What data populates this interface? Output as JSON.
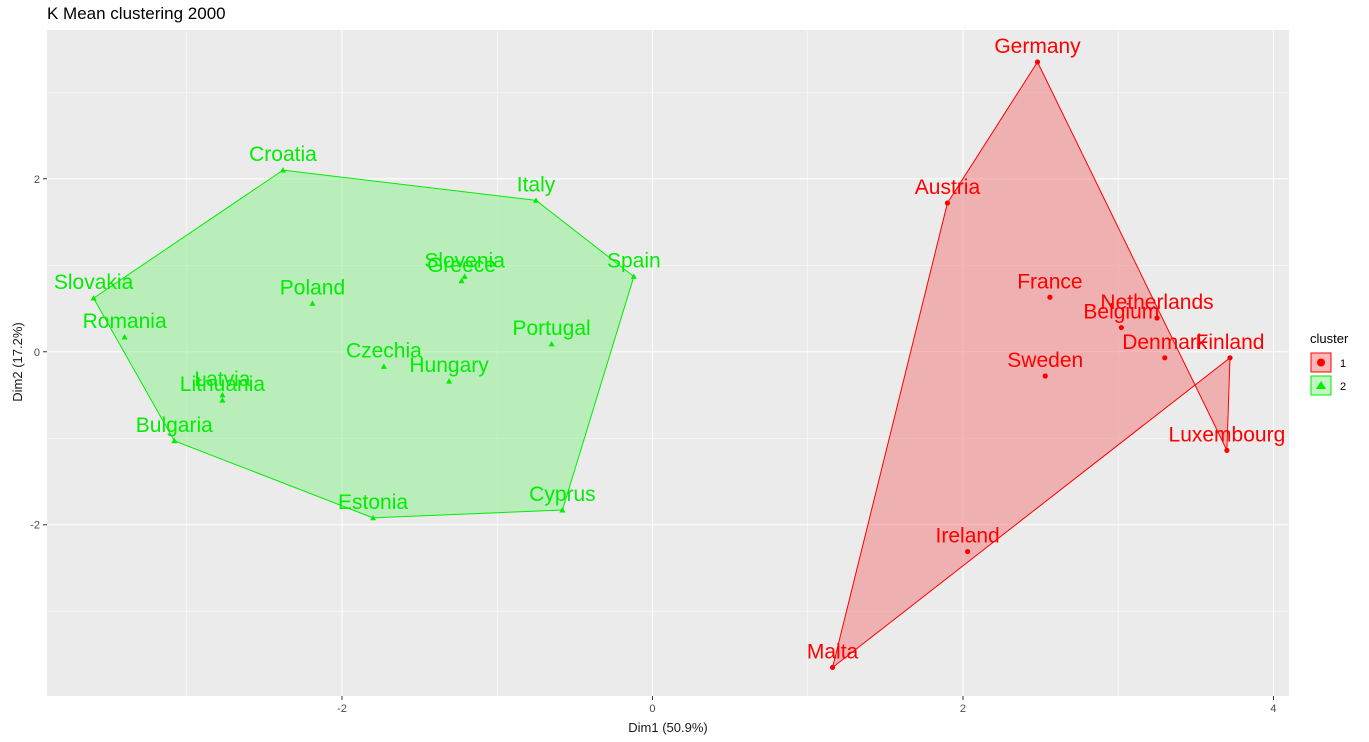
{
  "chart_data": {
    "type": "scatter",
    "title": "K Mean clustering 2000",
    "xlabel": "Dim1 (50.9%)",
    "ylabel": "Dim2 (17.2%)",
    "xlim": [
      -3.9,
      4.1
    ],
    "ylim": [
      -3.98,
      3.72
    ],
    "xticks": [
      -2,
      0,
      2,
      4
    ],
    "yticks": [
      -2,
      0,
      2
    ],
    "grid": true,
    "legend": {
      "title": "cluster",
      "position": "right",
      "entries": [
        "1",
        "2"
      ]
    },
    "colors": {
      "1": "#ff0000",
      "2": "#00ee00"
    },
    "series": [
      {
        "name": "1",
        "color": "#ff0000",
        "hull_fill": "#f08080",
        "hull": [
          "Germany",
          "Luxembourg",
          "Finland",
          "Malta",
          "Austria"
        ],
        "points": [
          {
            "label": "Germany",
            "x": 2.48,
            "y": 3.35
          },
          {
            "label": "Austria",
            "x": 1.9,
            "y": 1.72
          },
          {
            "label": "France",
            "x": 2.56,
            "y": 0.63
          },
          {
            "label": "Netherlands",
            "x": 3.25,
            "y": 0.39
          },
          {
            "label": "Belgium",
            "x": 3.02,
            "y": 0.28
          },
          {
            "label": "Denmark",
            "x": 3.3,
            "y": -0.07
          },
          {
            "label": "Finland",
            "x": 3.72,
            "y": -0.07
          },
          {
            "label": "Sweden",
            "x": 2.53,
            "y": -0.28
          },
          {
            "label": "Luxembourg",
            "x": 3.7,
            "y": -1.14
          },
          {
            "label": "Ireland",
            "x": 2.03,
            "y": -2.31
          },
          {
            "label": "Malta",
            "x": 1.16,
            "y": -3.65
          }
        ]
      },
      {
        "name": "2",
        "color": "#00ee00",
        "hull_fill": "#90ee90",
        "hull": [
          "Croatia",
          "Italy",
          "Spain",
          "Cyprus",
          "Estonia",
          "Bulgaria",
          "Slovakia"
        ],
        "points": [
          {
            "label": "Croatia",
            "x": -2.38,
            "y": 2.1
          },
          {
            "label": "Italy",
            "x": -0.75,
            "y": 1.75
          },
          {
            "label": "Slovenia",
            "x": -1.21,
            "y": 0.87
          },
          {
            "label": "Greece",
            "x": -1.23,
            "y": 0.82
          },
          {
            "label": "Spain",
            "x": -0.12,
            "y": 0.87
          },
          {
            "label": "Slovakia",
            "x": -3.6,
            "y": 0.62
          },
          {
            "label": "Poland",
            "x": -2.19,
            "y": 0.56
          },
          {
            "label": "Romania",
            "x": -3.4,
            "y": 0.17
          },
          {
            "label": "Portugal",
            "x": -0.65,
            "y": 0.09
          },
          {
            "label": "Czechia",
            "x": -1.73,
            "y": -0.17
          },
          {
            "label": "Hungary",
            "x": -1.31,
            "y": -0.34
          },
          {
            "label": "Latvia",
            "x": -2.77,
            "y": -0.5
          },
          {
            "label": "Lithuania",
            "x": -2.77,
            "y": -0.56
          },
          {
            "label": "Bulgaria",
            "x": -3.08,
            "y": -1.03
          },
          {
            "label": "Estonia",
            "x": -1.8,
            "y": -1.92
          },
          {
            "label": "Cyprus",
            "x": -0.58,
            "y": -1.83
          }
        ]
      }
    ]
  }
}
